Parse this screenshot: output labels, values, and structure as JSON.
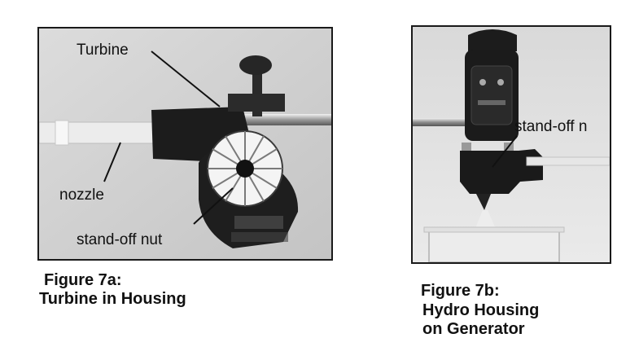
{
  "figure_a": {
    "labels": {
      "turbine": "Turbine",
      "nozzle": "nozzle",
      "standoff": "stand-off nut"
    },
    "caption_line1": "Figure 7a:",
    "caption_line2": "Turbine in Housing"
  },
  "figure_b": {
    "labels": {
      "standoff": "stand-off n"
    },
    "caption_line1": "Figure 7b:",
    "caption_line2": "Hydro Housing",
    "caption_line3": "on Generator"
  }
}
